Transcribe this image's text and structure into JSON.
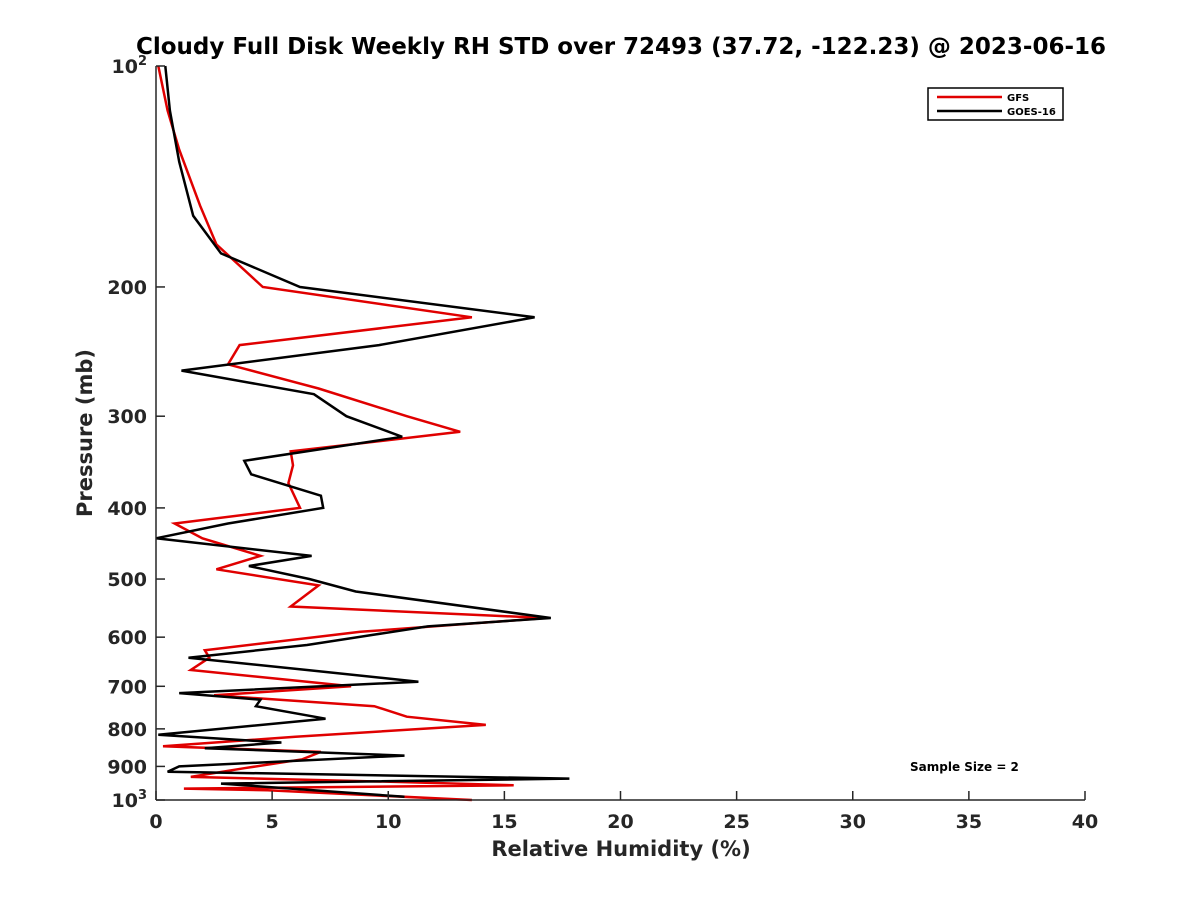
{
  "chart_data": {
    "type": "line",
    "title": "Cloudy Full Disk Weekly RH STD over 72493 (37.72, -122.23) @ 2023-06-16",
    "xlabel": "Relative Humidity (%)",
    "ylabel": "Pressure (mb)",
    "xlim": [
      0,
      40
    ],
    "ylim": [
      100,
      1000
    ],
    "y_scale": "log",
    "y_reversed": true,
    "x_ticks": [
      0,
      5,
      10,
      15,
      20,
      25,
      30,
      35,
      40
    ],
    "y_ticks": [
      {
        "value": 100,
        "base": "10",
        "exp": "2"
      },
      {
        "value": 200,
        "label": "200"
      },
      {
        "value": 300,
        "label": "300"
      },
      {
        "value": 400,
        "label": "400"
      },
      {
        "value": 500,
        "label": "500"
      },
      {
        "value": 600,
        "label": "600"
      },
      {
        "value": 700,
        "label": "700"
      },
      {
        "value": 800,
        "label": "800"
      },
      {
        "value": 900,
        "label": "900"
      },
      {
        "value": 1000,
        "base": "10",
        "exp": "3"
      }
    ],
    "grid": false,
    "legend_position": "top-right",
    "annotation": "Sample Size = 2",
    "series": [
      {
        "name": "GFS",
        "color": "#e00000",
        "points": [
          [
            0.1,
            100
          ],
          [
            0.5,
            115
          ],
          [
            1.0,
            130
          ],
          [
            1.9,
            155
          ],
          [
            2.6,
            175
          ],
          [
            4.6,
            200
          ],
          [
            13.6,
            220
          ],
          [
            3.6,
            240
          ],
          [
            3.1,
            255
          ],
          [
            7.0,
            275
          ],
          [
            10.8,
            300
          ],
          [
            13.1,
            315
          ],
          [
            5.8,
            335
          ],
          [
            5.9,
            350
          ],
          [
            5.7,
            370
          ],
          [
            6.2,
            400
          ],
          [
            0.8,
            420
          ],
          [
            2.0,
            440
          ],
          [
            4.5,
            465
          ],
          [
            2.6,
            485
          ],
          [
            7.0,
            510
          ],
          [
            5.8,
            545
          ],
          [
            16.8,
            565
          ],
          [
            8.8,
            590
          ],
          [
            2.1,
            625
          ],
          [
            2.3,
            640
          ],
          [
            1.5,
            665
          ],
          [
            5.5,
            685
          ],
          [
            8.4,
            700
          ],
          [
            2.5,
            720
          ],
          [
            9.4,
            745
          ],
          [
            10.8,
            770
          ],
          [
            14.2,
            790
          ],
          [
            6.0,
            820
          ],
          [
            0.3,
            845
          ],
          [
            7.1,
            860
          ],
          [
            6.3,
            880
          ],
          [
            3.8,
            905
          ],
          [
            1.5,
            930
          ],
          [
            10.5,
            945
          ],
          [
            15.4,
            955
          ],
          [
            1.2,
            965
          ],
          [
            4.8,
            970
          ],
          [
            13.6,
            1000
          ]
        ]
      },
      {
        "name": "GOES-16",
        "color": "#000000",
        "points": [
          [
            0.4,
            100
          ],
          [
            0.6,
            115
          ],
          [
            1.0,
            135
          ],
          [
            1.6,
            160
          ],
          [
            2.8,
            180
          ],
          [
            6.2,
            200
          ],
          [
            16.3,
            220
          ],
          [
            9.6,
            240
          ],
          [
            1.1,
            260
          ],
          [
            6.8,
            280
          ],
          [
            8.2,
            300
          ],
          [
            10.6,
            320
          ],
          [
            3.8,
            345
          ],
          [
            4.1,
            360
          ],
          [
            7.1,
            385
          ],
          [
            7.2,
            400
          ],
          [
            3.1,
            420
          ],
          [
            0.0,
            440
          ],
          [
            6.7,
            465
          ],
          [
            4.0,
            480
          ],
          [
            6.6,
            500
          ],
          [
            8.6,
            520
          ],
          [
            17.0,
            565
          ],
          [
            11.7,
            580
          ],
          [
            6.5,
            615
          ],
          [
            1.4,
            640
          ],
          [
            6.5,
            665
          ],
          [
            11.3,
            690
          ],
          [
            1.0,
            715
          ],
          [
            4.5,
            730
          ],
          [
            4.3,
            745
          ],
          [
            7.3,
            775
          ],
          [
            0.1,
            815
          ],
          [
            5.4,
            835
          ],
          [
            2.1,
            850
          ],
          [
            10.7,
            870
          ],
          [
            1.0,
            900
          ],
          [
            0.5,
            915
          ],
          [
            17.8,
            935
          ],
          [
            2.8,
            950
          ],
          [
            10.7,
            990
          ]
        ]
      }
    ]
  }
}
